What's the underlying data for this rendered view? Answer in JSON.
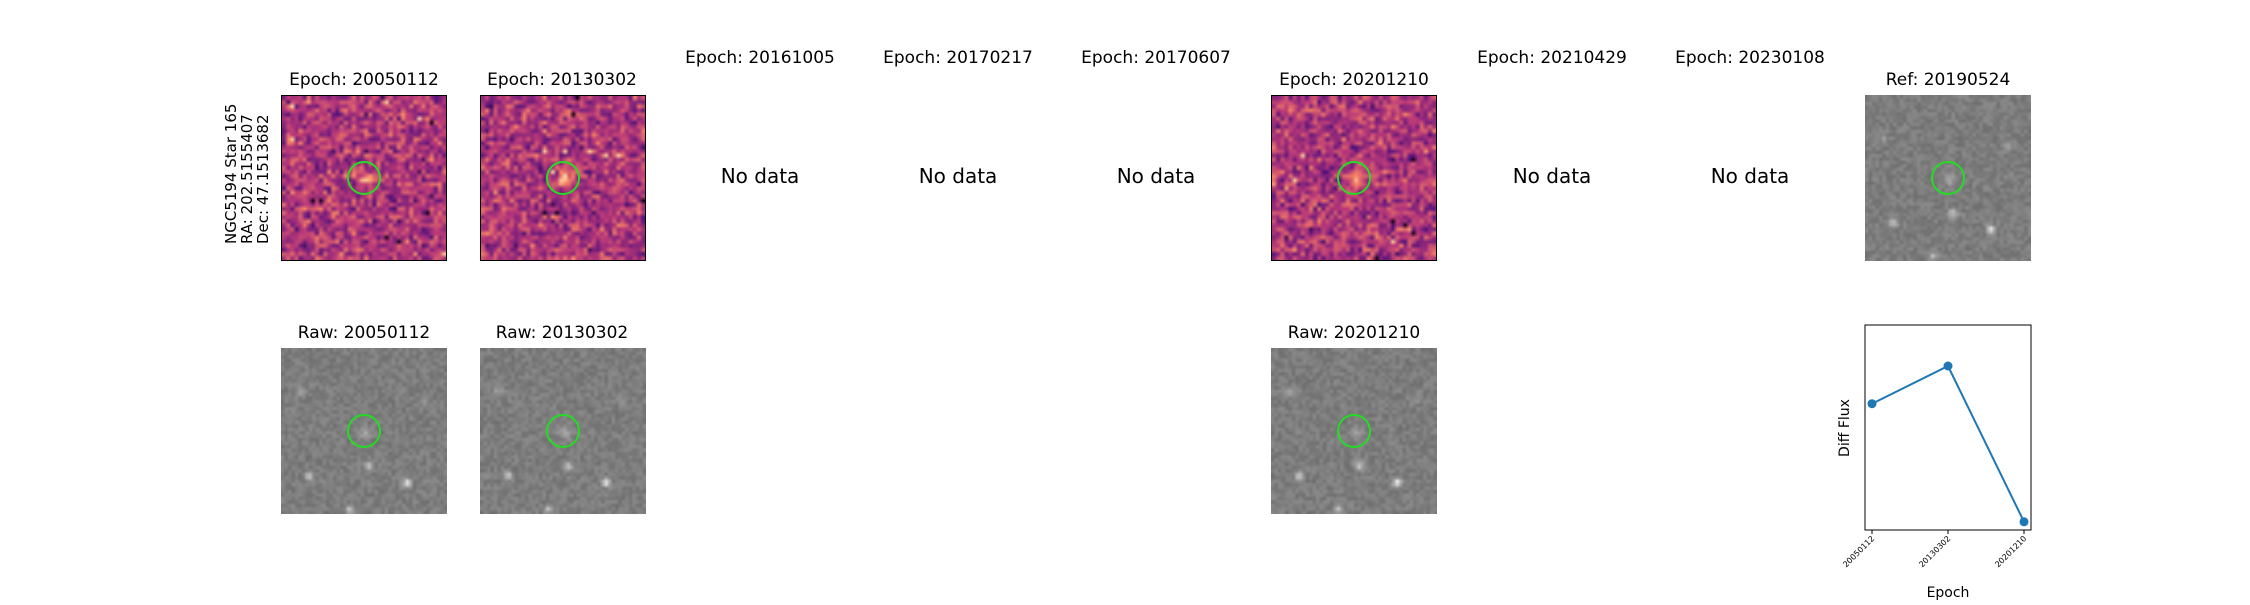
{
  "star": {
    "line1": "NGC5194 Star 165",
    "line2": "RA: 202.5155407",
    "line3": "Dec: 47.1513682"
  },
  "diff_panels": [
    {
      "title": "Epoch: 20050112",
      "has_data": true
    },
    {
      "title": "Epoch: 20130302",
      "has_data": true
    },
    {
      "title": "Epoch: 20161005",
      "has_data": false
    },
    {
      "title": "Epoch: 20170217",
      "has_data": false
    },
    {
      "title": "Epoch: 20170607",
      "has_data": false
    },
    {
      "title": "Epoch: 20201210",
      "has_data": true
    },
    {
      "title": "Epoch: 20210429",
      "has_data": false
    },
    {
      "title": "Epoch: 20230108",
      "has_data": false
    }
  ],
  "no_data_label": "No data",
  "ref_panel": {
    "title": "Ref: 20190524"
  },
  "raw_panels": [
    {
      "title": "Raw: 20050112"
    },
    {
      "title": "Raw: 20130302"
    },
    {
      "title": "Raw: 20201210"
    }
  ],
  "colors": {
    "circle": "#22dd22",
    "series": "#1f77b4"
  },
  "chart_data": {
    "type": "line",
    "title": "",
    "xlabel": "Epoch",
    "ylabel": "Diff Flux",
    "categories": [
      "20050112",
      "20130302",
      "20201210"
    ],
    "values": [
      0.72,
      0.95,
      0.0
    ],
    "ylim": [
      -0.05,
      1.2
    ],
    "grid": false,
    "y_ticks_shown": false
  }
}
